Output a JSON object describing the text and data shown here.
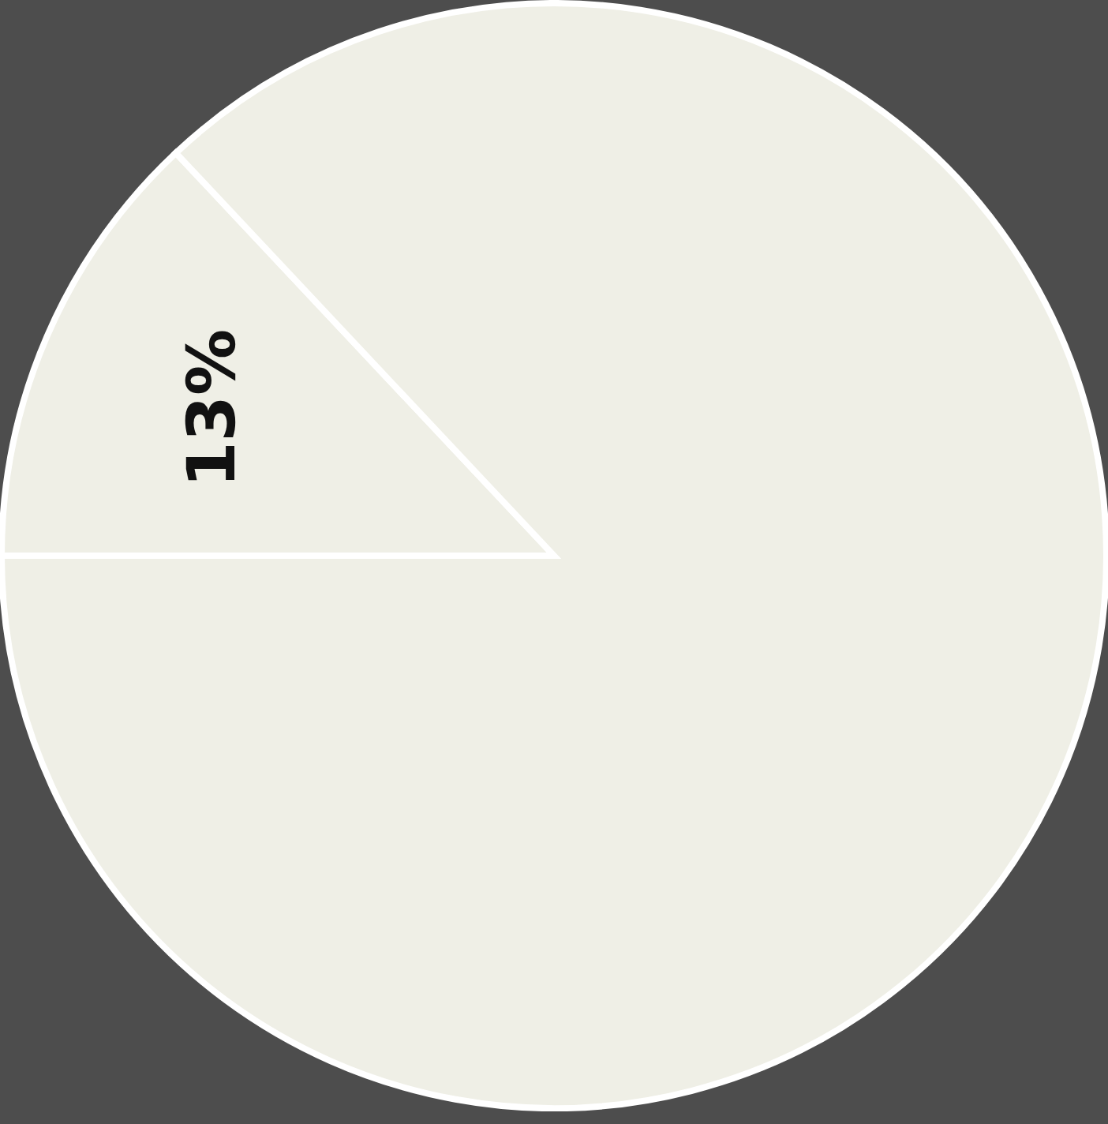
{
  "chart_data": {
    "type": "pie",
    "categories": [
      null,
      null
    ],
    "values": [
      13,
      87
    ],
    "colors": [
      "#efefe6",
      "#efefe6"
    ],
    "value_labels": [
      "13%",
      null
    ]
  }
}
